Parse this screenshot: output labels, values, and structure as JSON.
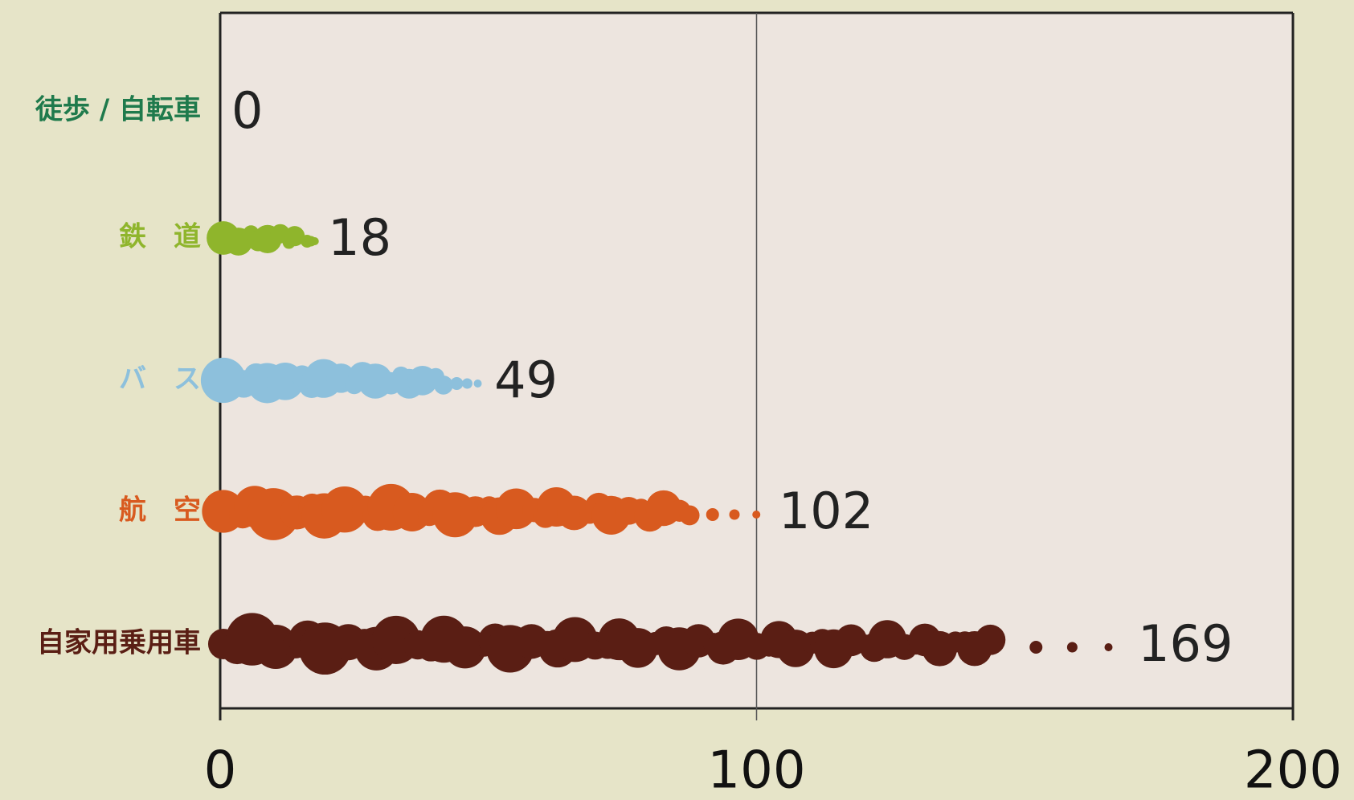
{
  "chart_data": {
    "type": "bar",
    "orientation": "horizontal",
    "categories": [
      "徒歩 / 自転車",
      "鉄　道",
      "バ　ス",
      "航　空",
      "自家用乗用車"
    ],
    "values": [
      0,
      18,
      49,
      102,
      169
    ],
    "colors": [
      "#1f7a4c",
      "#8fb52c",
      "#8dc0dc",
      "#d85a1f",
      "#5a1e14"
    ],
    "xlim": [
      0,
      200
    ],
    "xticks": [
      0,
      100,
      200
    ],
    "grid": true
  }
}
